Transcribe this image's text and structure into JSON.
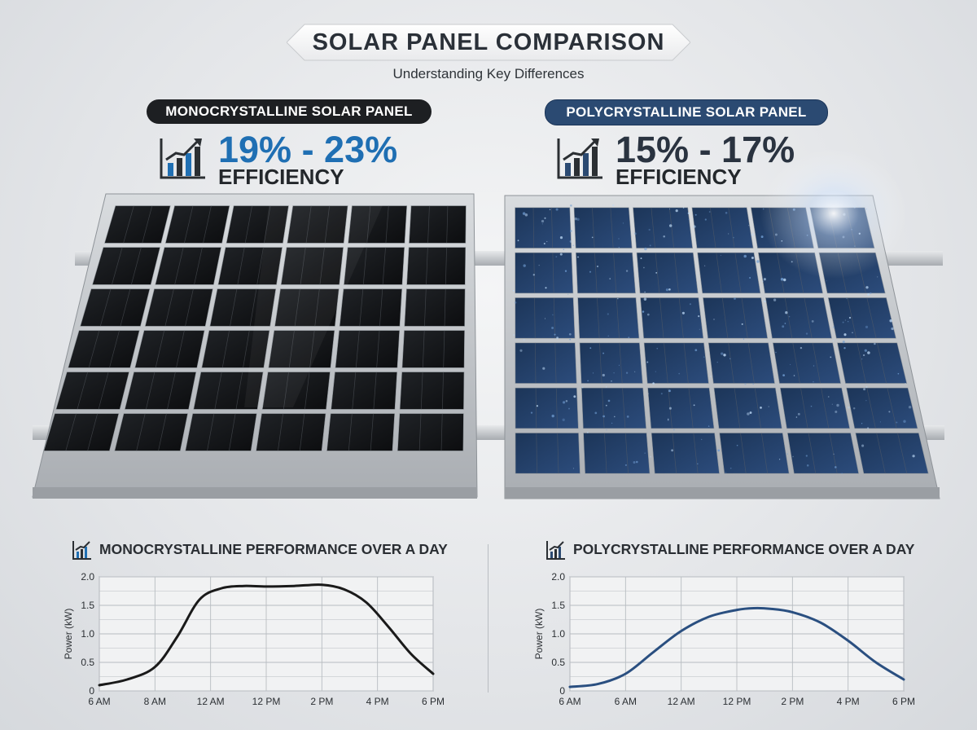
{
  "header": {
    "title": "SOLAR PANEL COMPARISON",
    "subtitle": "Understanding Key Differences"
  },
  "mono": {
    "label": "MONOCRYSTALLINE SOLAR PANEL",
    "efficiency_range": "19% - 23%",
    "efficiency_label": "EFFICIENCY",
    "cell_color": "#111316",
    "accent_color": "#1f6fb3"
  },
  "poly": {
    "label": "POLYCRYSTALLINE SOLAR PANEL",
    "efficiency_range": "15% - 17%",
    "efficiency_label": "EFFICIENCY",
    "cell_color": "#23406b",
    "accent_color": "#2b4a72"
  },
  "icons": [
    "growth-chart-icon"
  ],
  "chart_data": [
    {
      "type": "line",
      "title": "MONOCRYSTALLINE PERFORMANCE OVER A DAY",
      "xlabel": "",
      "ylabel": "Power (kW)",
      "ylim": [
        0,
        2.0
      ],
      "y_ticks": [
        "0",
        "0.5",
        "1.0",
        "1.5",
        "2.0"
      ],
      "categories": [
        "6 AM",
        "8 AM",
        "12 AM",
        "12 PM",
        "2 PM",
        "4 PM",
        "6 PM"
      ],
      "grid": true,
      "line_color": "#1a1a1a",
      "x": [
        0,
        0.5,
        1,
        1.4,
        1.8,
        2.2,
        2.6,
        3,
        3.5,
        4,
        4.4,
        4.8,
        5.2,
        5.6,
        6
      ],
      "values": [
        0.1,
        0.2,
        0.42,
        0.95,
        1.6,
        1.8,
        1.84,
        1.83,
        1.84,
        1.86,
        1.78,
        1.55,
        1.12,
        0.65,
        0.3
      ]
    },
    {
      "type": "line",
      "title": "POLYCRYSTALLINE PERFORMANCE OVER A DAY",
      "xlabel": "",
      "ylabel": "Power (kW)",
      "ylim": [
        0,
        2.0
      ],
      "y_ticks": [
        "0",
        "0.5",
        "1.0",
        "1.5",
        "2.0"
      ],
      "categories": [
        "6 AM",
        "6 AM",
        "12 AM",
        "12 PM",
        "2 PM",
        "4 PM",
        "6 PM"
      ],
      "grid": true,
      "line_color": "#2a4f80",
      "x": [
        0,
        0.5,
        1,
        1.5,
        2,
        2.5,
        3,
        3.3,
        3.6,
        4,
        4.5,
        5,
        5.5,
        6
      ],
      "values": [
        0.07,
        0.12,
        0.3,
        0.68,
        1.05,
        1.3,
        1.42,
        1.45,
        1.44,
        1.38,
        1.2,
        0.88,
        0.5,
        0.2
      ]
    }
  ]
}
